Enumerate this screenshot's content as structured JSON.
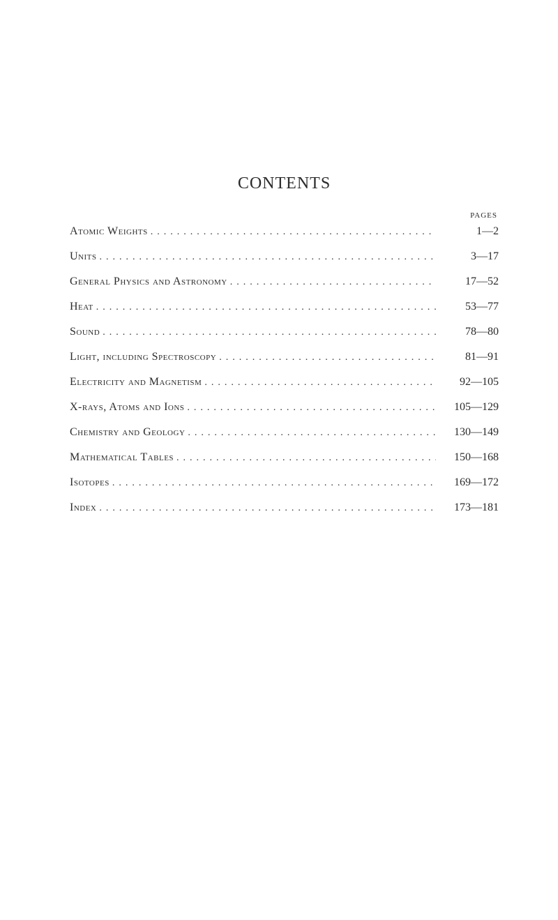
{
  "title": "CONTENTS",
  "pages_header": "PAGES",
  "leader_dots": "..............................................................",
  "entries": [
    {
      "label": "Atomic Weights",
      "range": "1—2"
    },
    {
      "label": "Units",
      "range": "3—17"
    },
    {
      "label": "General Physics and Astronomy",
      "range": "17—52"
    },
    {
      "label": "Heat",
      "range": "53—77"
    },
    {
      "label": "Sound",
      "range": "78—80"
    },
    {
      "label": "Light, including Spectroscopy",
      "range": "81—91"
    },
    {
      "label": "Electricity and Magnetism",
      "range": "92—105"
    },
    {
      "label": "X-rays, Atoms and Ions",
      "range": "105—129"
    },
    {
      "label": "Chemistry and Geology",
      "range": "130—149"
    },
    {
      "label": "Mathematical Tables",
      "range": "150—168"
    },
    {
      "label": "Isotopes",
      "range": "169—172"
    },
    {
      "label": "Index",
      "range": "173—181"
    }
  ],
  "colors": {
    "background": "#ffffff",
    "text": "#2b2b2b"
  },
  "typography": {
    "title_fontsize": 24,
    "body_fontsize": 16,
    "header_fontsize": 11,
    "font_family": "Georgia, Times New Roman, serif"
  }
}
